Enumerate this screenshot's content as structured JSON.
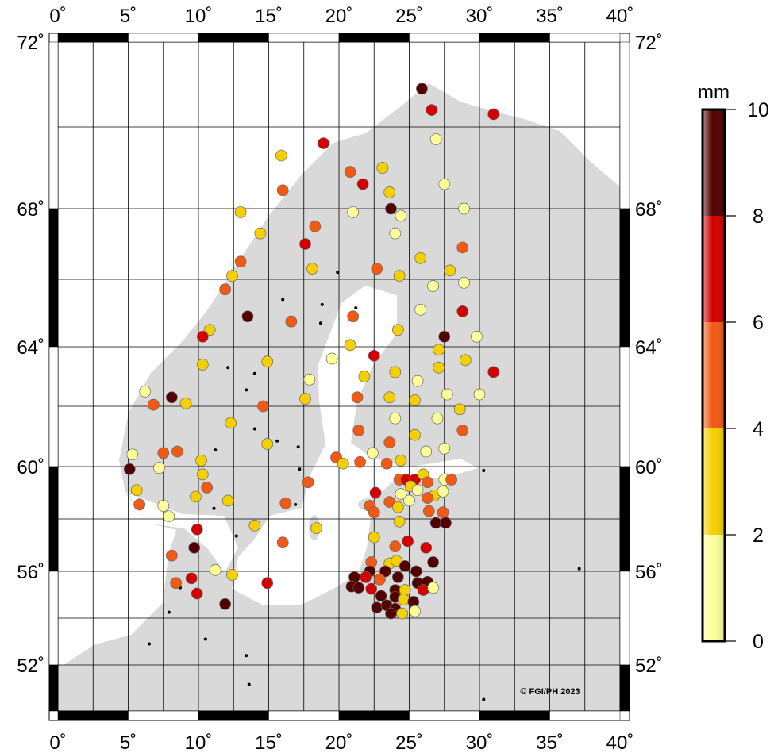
{
  "map": {
    "lon_ticks": [
      "0˚",
      "5˚",
      "10˚",
      "15˚",
      "20˚",
      "25˚",
      "30˚",
      "35˚",
      "40˚"
    ],
    "lat_ticks": [
      "72˚",
      "68˚",
      "64˚",
      "60˚",
      "56˚",
      "52˚"
    ],
    "lon_values": [
      0,
      5,
      10,
      15,
      20,
      25,
      30,
      35,
      40
    ],
    "lat_values": [
      72,
      68,
      64,
      60,
      56,
      52
    ],
    "extent": {
      "lon": [
        0,
        40
      ],
      "lat": [
        50,
        72
      ]
    },
    "grid": {
      "lon_step": 2.5,
      "lat_step": 2
    },
    "copyright": "© FGI/PH 2023",
    "land_color": "#d9d9d9",
    "sea_color": "#ffffff"
  },
  "colorbar": {
    "unit": "mm",
    "ticks": [
      "10",
      "8",
      "6",
      "4",
      "2",
      "0"
    ],
    "classes": [
      {
        "min": 0,
        "max": 2,
        "color": "#ffff99"
      },
      {
        "min": 2,
        "max": 4,
        "color": "#f5d000"
      },
      {
        "min": 4,
        "max": 6,
        "color": "#f05a14"
      },
      {
        "min": 6,
        "max": 8,
        "color": "#d20000"
      },
      {
        "min": 8,
        "max": 10,
        "color": "#520000"
      }
    ]
  },
  "stations": [
    [
      25.9,
      70.9,
      9
    ],
    [
      26.6,
      70.4,
      7
    ],
    [
      31.0,
      70.3,
      7
    ],
    [
      18.9,
      69.6,
      7
    ],
    [
      26.9,
      69.7,
      1
    ],
    [
      15.9,
      69.3,
      3
    ],
    [
      23.1,
      69.0,
      3
    ],
    [
      20.8,
      68.9,
      5
    ],
    [
      21.7,
      68.6,
      7
    ],
    [
      16.0,
      68.45,
      5
    ],
    [
      23.6,
      68.4,
      3
    ],
    [
      27.5,
      68.6,
      1
    ],
    [
      23.7,
      68.0,
      9
    ],
    [
      13.0,
      67.9,
      3
    ],
    [
      21.0,
      67.9,
      1
    ],
    [
      24.4,
      67.8,
      1
    ],
    [
      28.9,
      68.0,
      1
    ],
    [
      18.3,
      67.5,
      5
    ],
    [
      14.4,
      67.3,
      3
    ],
    [
      24.0,
      67.3,
      1
    ],
    [
      17.6,
      67.0,
      7
    ],
    [
      28.8,
      66.9,
      5
    ],
    [
      13.0,
      66.5,
      5
    ],
    [
      25.8,
      66.6,
      3
    ],
    [
      22.7,
      66.3,
      5
    ],
    [
      18.1,
      66.3,
      3
    ],
    [
      27.9,
      66.25,
      3
    ],
    [
      12.4,
      66.1,
      3
    ],
    [
      24.3,
      66.1,
      3
    ],
    [
      26.7,
      65.8,
      1
    ],
    [
      28.9,
      65.9,
      1
    ],
    [
      11.9,
      65.7,
      5
    ],
    [
      25.8,
      65.1,
      1
    ],
    [
      28.8,
      65.05,
      7
    ],
    [
      13.5,
      64.9,
      9
    ],
    [
      21.0,
      64.9,
      5
    ],
    [
      16.6,
      64.75,
      5
    ],
    [
      10.8,
      64.5,
      3
    ],
    [
      24.2,
      64.5,
      3
    ],
    [
      10.3,
      64.3,
      7
    ],
    [
      27.5,
      64.3,
      9
    ],
    [
      29.8,
      64.3,
      1
    ],
    [
      20.8,
      64.05,
      3
    ],
    [
      22.5,
      63.7,
      7
    ],
    [
      27.1,
      63.9,
      3
    ],
    [
      31.0,
      63.15,
      7
    ],
    [
      10.3,
      63.4,
      3
    ],
    [
      19.5,
      63.6,
      1
    ],
    [
      14.9,
      63.5,
      3
    ],
    [
      29.0,
      63.55,
      3
    ],
    [
      24.0,
      63.15,
      3
    ],
    [
      21.8,
      63.0,
      3
    ],
    [
      17.9,
      62.9,
      1
    ],
    [
      27.1,
      63.3,
      3
    ],
    [
      25.6,
      62.85,
      1
    ],
    [
      6.2,
      62.5,
      1
    ],
    [
      8.1,
      62.3,
      9
    ],
    [
      6.8,
      62.05,
      5
    ],
    [
      9.1,
      62.1,
      3
    ],
    [
      17.6,
      62.25,
      3
    ],
    [
      21.3,
      62.3,
      5
    ],
    [
      23.6,
      62.3,
      3
    ],
    [
      25.4,
      62.2,
      3
    ],
    [
      27.7,
      62.4,
      1
    ],
    [
      30.0,
      62.4,
      1
    ],
    [
      14.6,
      62.0,
      5
    ],
    [
      24.0,
      61.6,
      1
    ],
    [
      28.6,
      61.9,
      3
    ],
    [
      12.3,
      61.45,
      3
    ],
    [
      21.4,
      61.2,
      5
    ],
    [
      27.0,
      61.6,
      1
    ],
    [
      28.8,
      61.2,
      5
    ],
    [
      25.4,
      61.05,
      3
    ],
    [
      23.6,
      60.8,
      5
    ],
    [
      14.9,
      60.75,
      3
    ],
    [
      5.3,
      60.4,
      1
    ],
    [
      7.5,
      60.45,
      5
    ],
    [
      8.5,
      60.5,
      5
    ],
    [
      22.4,
      60.45,
      1
    ],
    [
      26.2,
      60.5,
      1
    ],
    [
      27.5,
      60.6,
      1
    ],
    [
      10.2,
      60.2,
      3
    ],
    [
      7.2,
      59.95,
      1
    ],
    [
      19.8,
      60.3,
      5
    ],
    [
      20.3,
      60.1,
      3
    ],
    [
      21.5,
      60.15,
      5
    ],
    [
      23.4,
      60.1,
      5
    ],
    [
      24.4,
      60.2,
      3
    ],
    [
      5.1,
      59.9,
      9
    ],
    [
      10.3,
      59.7,
      3
    ],
    [
      5.6,
      59.1,
      3
    ],
    [
      10.6,
      59.2,
      5
    ],
    [
      5.8,
      58.55,
      5
    ],
    [
      7.5,
      58.5,
      1
    ],
    [
      7.9,
      58.1,
      1
    ],
    [
      9.8,
      58.85,
      3
    ],
    [
      12.1,
      58.7,
      3
    ],
    [
      17.8,
      59.4,
      5
    ],
    [
      16.2,
      58.6,
      5
    ],
    [
      24.3,
      59.5,
      5
    ],
    [
      24.8,
      59.5,
      7
    ],
    [
      25.4,
      59.5,
      7
    ],
    [
      26.0,
      59.7,
      3
    ],
    [
      26.3,
      59.4,
      5
    ],
    [
      27.5,
      59.5,
      1
    ],
    [
      28.0,
      59.5,
      5
    ],
    [
      25.1,
      59.25,
      3
    ],
    [
      25.6,
      59.1,
      1
    ],
    [
      24.4,
      58.95,
      1
    ],
    [
      26.8,
      58.9,
      3
    ],
    [
      27.4,
      59.05,
      1
    ],
    [
      22.6,
      59.0,
      7
    ],
    [
      23.6,
      58.65,
      5
    ],
    [
      25.0,
      58.7,
      1
    ],
    [
      24.2,
      58.45,
      3
    ],
    [
      26.3,
      58.8,
      5
    ],
    [
      22.2,
      58.5,
      5
    ],
    [
      22.5,
      58.25,
      5
    ],
    [
      26.4,
      58.3,
      5
    ],
    [
      27.4,
      58.25,
      5
    ],
    [
      24.3,
      57.9,
      3
    ],
    [
      26.9,
      57.85,
      9
    ],
    [
      27.6,
      57.85,
      9
    ],
    [
      22.5,
      57.3,
      3
    ],
    [
      24.9,
      57.15,
      7
    ],
    [
      24.0,
      56.95,
      5
    ],
    [
      26.2,
      56.9,
      7
    ],
    [
      22.3,
      56.35,
      5
    ],
    [
      23.6,
      56.3,
      3
    ],
    [
      24.1,
      56.4,
      3
    ],
    [
      24.7,
      56.2,
      9
    ],
    [
      26.7,
      56.35,
      9
    ],
    [
      25.5,
      56.0,
      9
    ],
    [
      22.2,
      56.0,
      9
    ],
    [
      23.3,
      56.0,
      9
    ],
    [
      21.1,
      55.75,
      9
    ],
    [
      21.9,
      55.75,
      7
    ],
    [
      22.9,
      55.65,
      5
    ],
    [
      24.2,
      55.75,
      9
    ],
    [
      20.9,
      55.35,
      9
    ],
    [
      21.4,
      55.3,
      9
    ],
    [
      22.3,
      55.25,
      7
    ],
    [
      24.0,
      55.2,
      9
    ],
    [
      24.7,
      55.2,
      3
    ],
    [
      25.6,
      55.5,
      9
    ],
    [
      26.3,
      55.55,
      9
    ],
    [
      26.0,
      55.2,
      7
    ],
    [
      26.7,
      55.3,
      1
    ],
    [
      23.0,
      54.95,
      9
    ],
    [
      24.0,
      54.9,
      9
    ],
    [
      24.6,
      54.8,
      3
    ],
    [
      25.3,
      54.7,
      9
    ],
    [
      22.7,
      54.45,
      9
    ],
    [
      23.4,
      54.55,
      9
    ],
    [
      24.0,
      54.4,
      9
    ],
    [
      24.5,
      54.2,
      3
    ],
    [
      25.4,
      54.3,
      1
    ],
    [
      23.7,
      54.2,
      9
    ],
    [
      9.9,
      57.6,
      7
    ],
    [
      14.0,
      57.75,
      3
    ],
    [
      18.4,
      57.65,
      3
    ],
    [
      16.0,
      57.1,
      5
    ],
    [
      9.7,
      56.9,
      9
    ],
    [
      8.1,
      56.6,
      5
    ],
    [
      11.2,
      56.05,
      1
    ],
    [
      12.4,
      55.85,
      3
    ],
    [
      8.4,
      55.5,
      5
    ],
    [
      9.5,
      55.7,
      7
    ],
    [
      9.9,
      55.05,
      7
    ],
    [
      14.9,
      55.5,
      7
    ],
    [
      11.9,
      54.6,
      9
    ]
  ],
  "no_data_stations": [
    [
      19.9,
      66.2
    ],
    [
      16.0,
      65.4
    ],
    [
      18.8,
      65.25
    ],
    [
      21.2,
      65.15
    ],
    [
      18.7,
      64.7
    ],
    [
      12.1,
      63.3
    ],
    [
      14.0,
      63.1
    ],
    [
      13.4,
      62.55
    ],
    [
      14.0,
      61.25
    ],
    [
      15.6,
      60.85
    ],
    [
      17.1,
      60.65
    ],
    [
      11.2,
      60.55
    ],
    [
      17.2,
      59.9
    ],
    [
      16.9,
      58.55
    ],
    [
      11.1,
      58.4
    ],
    [
      12.7,
      57.35
    ],
    [
      8.7,
      55.3
    ],
    [
      7.9,
      54.25
    ],
    [
      10.5,
      53.1
    ],
    [
      13.4,
      52.4
    ],
    [
      13.6,
      51.15
    ],
    [
      6.5,
      52.9
    ],
    [
      30.3,
      59.85
    ],
    [
      37.1,
      56.1
    ],
    [
      30.3,
      50.5
    ]
  ]
}
